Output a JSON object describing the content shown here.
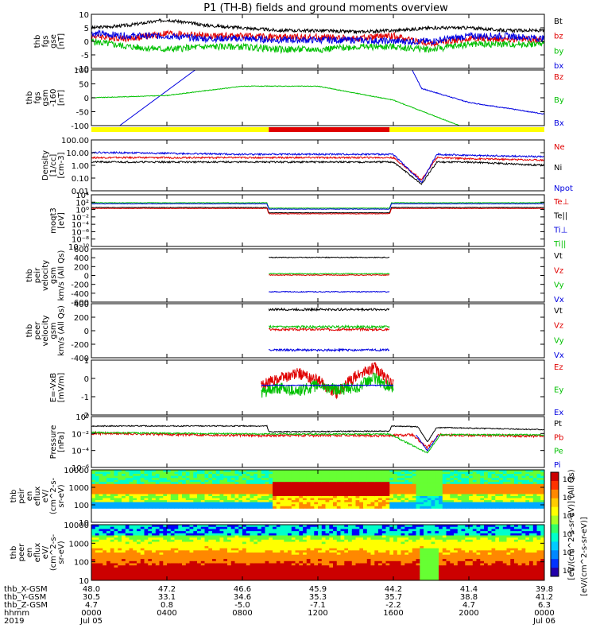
{
  "title": "P1 (TH-B) fields and ground moments overview",
  "colors": {
    "black": "#000000",
    "red": "#e00000",
    "green": "#00c000",
    "blue": "#0000e0",
    "yellow": "#ffff00",
    "barred": "#e00000"
  },
  "panels": [
    {
      "id": "fgs-gse",
      "ylabel": [
        "thb",
        "fgs",
        "gse",
        "[nT]"
      ],
      "ticks": [
        "10",
        "5",
        "0",
        "-5",
        "-10"
      ],
      "ylim": [
        -10,
        10
      ],
      "legend": [
        {
          "t": "Bt",
          "c": "black"
        },
        {
          "t": "bz",
          "c": "red"
        },
        {
          "t": "by",
          "c": "green"
        },
        {
          "t": "bx",
          "c": "blue"
        }
      ]
    },
    {
      "id": "fgs-gsm",
      "ylabel": [
        "thb",
        "fgs",
        "gsm",
        "-160",
        "[nT]"
      ],
      "ticks": [
        "100",
        "50",
        "0",
        "-50",
        "-100"
      ],
      "ylim": [
        -130,
        110
      ],
      "legend": [
        {
          "t": "Bz",
          "c": "red"
        },
        {
          "t": "By",
          "c": "green"
        },
        {
          "t": "Bx",
          "c": "blue"
        }
      ]
    },
    {
      "id": "density",
      "ylabel": [
        "Density",
        "[1/cc]",
        "[cm-3]"
      ],
      "ticks": [
        "100.00",
        "10.00",
        "1.00",
        "0.10",
        "0.01"
      ],
      "ylim": [
        -2.3,
        2.3
      ],
      "legend": [
        {
          "t": "Ne",
          "c": "red"
        },
        {
          "t": "Ni",
          "c": "black"
        },
        {
          "t": "Npot",
          "c": "blue"
        }
      ]
    },
    {
      "id": "temp",
      "ylabel": [
        "moqt3",
        "[eV]"
      ],
      "ticks": [
        "10⁴",
        "10²",
        "10⁰",
        "10⁻²",
        "10⁻⁴",
        "10⁻⁶",
        "10⁻⁸",
        "10⁻¹⁰"
      ],
      "ylim": [
        -10.5,
        5
      ],
      "legend": [
        {
          "t": "Te⊥",
          "c": "red"
        },
        {
          "t": "Te||",
          "c": "black"
        },
        {
          "t": "Ti⊥",
          "c": "blue"
        },
        {
          "t": "Ti||",
          "c": "green"
        }
      ]
    },
    {
      "id": "peir-vel",
      "ylabel": [
        "thb",
        "peir",
        "velocity",
        "gsm",
        "km/s (All Qs)"
      ],
      "ticks": [
        "600",
        "400",
        "200",
        "0",
        "-200",
        "-400",
        "-600"
      ],
      "ylim": [
        -620,
        620
      ],
      "legend": [
        {
          "t": "Vt",
          "c": "black"
        },
        {
          "t": "Vz",
          "c": "red"
        },
        {
          "t": "Vy",
          "c": "green"
        },
        {
          "t": "Vx",
          "c": "blue"
        }
      ]
    },
    {
      "id": "peer-vel",
      "ylabel": [
        "thb",
        "peer",
        "velocity",
        "gsm",
        "km/s (All Qs)"
      ],
      "ticks": [
        "400",
        "200",
        "0",
        "-200",
        "-400"
      ],
      "ylim": [
        -420,
        420
      ],
      "legend": [
        {
          "t": "Vt",
          "c": "black"
        },
        {
          "t": "Vz",
          "c": "red"
        },
        {
          "t": "Vy",
          "c": "green"
        },
        {
          "t": "Vx",
          "c": "blue"
        }
      ]
    },
    {
      "id": "efield",
      "ylabel": [
        "E=-VxB",
        "[mV/m]"
      ],
      "ticks": [
        "1",
        "0",
        "-1",
        "-2"
      ],
      "ylim": [
        -2,
        1.7
      ],
      "legend": [
        {
          "t": "Ez",
          "c": "red"
        },
        {
          "t": "Ey",
          "c": "green"
        },
        {
          "t": "Ex",
          "c": "blue"
        }
      ]
    },
    {
      "id": "pressure",
      "ylabel": [
        "Pressure",
        "[nPa]"
      ],
      "ticks": [
        "10⁰",
        "10⁻²",
        "10⁻⁴",
        "10⁻⁶"
      ],
      "ylim": [
        -6.5,
        0.5
      ],
      "legend": [
        {
          "t": "Pt",
          "c": "black"
        },
        {
          "t": "Pb",
          "c": "red"
        },
        {
          "t": "Pe",
          "c": "green"
        },
        {
          "t": "Pi",
          "c": "blue"
        }
      ]
    },
    {
      "id": "peir-spec",
      "ylabel": [
        "thb",
        "peir",
        "en",
        "eflux",
        "eV/",
        "(cm^2-s-",
        "sr-eV)"
      ],
      "ticks": [
        "10000",
        "1000",
        "100",
        "10"
      ],
      "ylim": [
        0.6,
        4.3
      ]
    },
    {
      "id": "peer-spec",
      "ylabel": [
        "thb",
        "peer",
        "en",
        "eflux",
        "eV/",
        "(cm^2-s-",
        "sr-eV)"
      ],
      "ticks": [
        "10000",
        "1000",
        "100",
        "10"
      ],
      "ylim": [
        0.6,
        4.3
      ]
    }
  ],
  "colorbar": {
    "label": "[eV/(cm^2-s-sr-eV)] (All Qs)",
    "label2": "[eV/(cm^2-s-sr-eV)]",
    "ticks": [
      "10⁸",
      "10⁷",
      "10⁶",
      "10⁵",
      "10⁴",
      "10³"
    ]
  },
  "xaxis": {
    "rows": [
      {
        "label": "thb_X-GSM",
        "values": [
          "48.0",
          "47.2",
          "46.6",
          "45.9",
          "44.2",
          "41.4",
          "39.8"
        ]
      },
      {
        "label": "thb_Y-GSM",
        "values": [
          "30.5",
          "33.1",
          "34.6",
          "35.3",
          "35.7",
          "38.8",
          "41.2"
        ]
      },
      {
        "label": "thb_Z-GSM",
        "values": [
          "4.7",
          "0.8",
          "-5.0",
          "-7.1",
          "-2.2",
          "4.7",
          "6.3"
        ]
      },
      {
        "label": "hhmm",
        "values": [
          "0000",
          "0400",
          "0800",
          "1200",
          "1600",
          "2000",
          "0000"
        ]
      }
    ],
    "year": "2019",
    "dates": [
      {
        "t": "Jul 05",
        "at": 0
      },
      {
        "t": "Jul 06",
        "at": 24
      }
    ]
  },
  "chart_data": {
    "type": "line",
    "x_hours": [
      0,
      4,
      8,
      12,
      16,
      20,
      24
    ],
    "x_labels": [
      "0000",
      "0400",
      "0800",
      "1200",
      "1600",
      "2000",
      "0000"
    ],
    "series_fgs_gse": [
      {
        "name": "Bt",
        "x": [
          0,
          2,
          4,
          6,
          8,
          10,
          12,
          14,
          16,
          18,
          20,
          22,
          24
        ],
        "y": [
          5,
          6,
          8,
          6,
          5,
          4,
          4,
          3.5,
          4,
          5,
          5,
          4,
          4
        ]
      },
      {
        "name": "bz",
        "x": [
          0,
          2,
          4,
          6,
          8,
          10,
          12,
          14,
          16,
          18,
          20,
          22,
          24
        ],
        "y": [
          2,
          1,
          3,
          2,
          2,
          1.5,
          1.5,
          1,
          2,
          -1,
          1,
          1,
          0.5
        ]
      },
      {
        "name": "by",
        "x": [
          0,
          2,
          4,
          6,
          8,
          10,
          12,
          14,
          16,
          18,
          20,
          22,
          24
        ],
        "y": [
          0,
          -2,
          -3,
          -2,
          -2,
          -3,
          -3,
          -2,
          -2,
          -3,
          -1,
          -1,
          -1
        ]
      },
      {
        "name": "bx",
        "x": [
          0,
          2,
          4,
          6,
          8,
          10,
          12,
          14,
          16,
          18,
          20,
          22,
          24
        ],
        "y": [
          3,
          2,
          2,
          1,
          1,
          0.5,
          0.5,
          0.5,
          0,
          0,
          2,
          2,
          1
        ]
      }
    ],
    "series_fgs_gsm": [
      {
        "name": "Bx",
        "x": [
          1.5,
          5.5,
          17,
          17.5,
          20,
          24
        ],
        "y": [
          -130,
          110,
          110,
          30,
          -30,
          -80
        ]
      },
      {
        "name": "By",
        "x": [
          0,
          4,
          8,
          12,
          16,
          19.5
        ],
        "y": [
          -10,
          0,
          40,
          40,
          -20,
          -130
        ]
      }
    ],
    "series_density": [
      {
        "name": "Ne",
        "x": [
          0,
          8,
          16,
          17.5,
          18.3,
          20,
          24
        ],
        "y": [
          5,
          5,
          5,
          0.05,
          5,
          4,
          3
        ]
      },
      {
        "name": "Ni",
        "x": [
          0,
          8,
          16,
          17.5,
          18.3,
          20,
          24
        ],
        "y": [
          2,
          2,
          2,
          0.02,
          2,
          2,
          1
        ]
      },
      {
        "name": "Npot",
        "x": [
          0,
          8,
          16,
          17.5,
          18.3,
          20,
          24
        ],
        "y": [
          15,
          10,
          10,
          0.03,
          10,
          8,
          6
        ]
      }
    ],
    "series_efield": [
      {
        "name": "Ez",
        "x": [
          9,
          10,
          11,
          12,
          13,
          14,
          15,
          16
        ],
        "y": [
          0,
          0.5,
          0.8,
          0.3,
          -0.5,
          0.6,
          1.2,
          0
        ]
      },
      {
        "name": "Ey",
        "x": [
          9,
          10,
          11,
          12,
          13,
          14,
          15,
          16
        ],
        "y": [
          -0.5,
          -0.2,
          -0.4,
          0,
          -0.3,
          -0.2,
          0.5,
          -0.3
        ]
      },
      {
        "name": "Ex",
        "x": [
          9,
          10,
          11,
          12,
          13,
          14,
          15,
          16
        ],
        "y": [
          0,
          0,
          0,
          0,
          0,
          0,
          0,
          0
        ]
      }
    ]
  }
}
